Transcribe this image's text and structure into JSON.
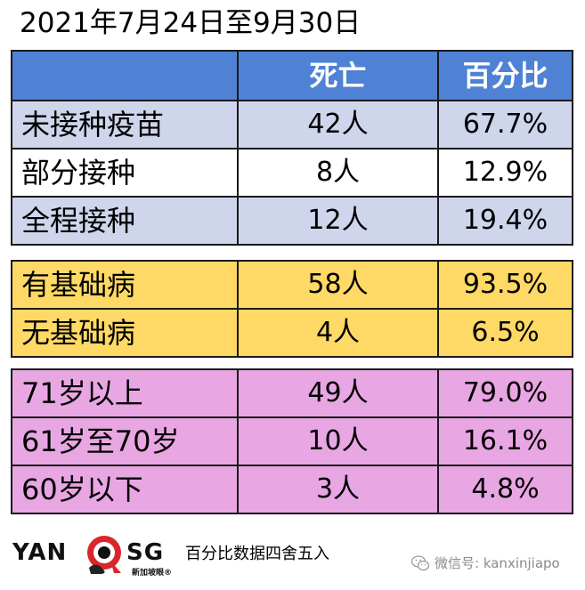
{
  "title": "2021年7月24日至9月30日",
  "header": {
    "col0": "",
    "col1": "死亡",
    "col2": "百分比"
  },
  "vaccination_rows": [
    {
      "label": "未接种疫苗",
      "deaths": "42人",
      "percent": "67.7%"
    },
    {
      "label": "部分接种",
      "deaths": "8人",
      "percent": "12.9%"
    },
    {
      "label": "全程接种",
      "deaths": "12人",
      "percent": "19.4%"
    }
  ],
  "condition_rows": [
    {
      "label": "有基础病",
      "deaths": "58人",
      "percent": "93.5%"
    },
    {
      "label": "无基础病",
      "deaths": "4人",
      "percent": "6.5%"
    }
  ],
  "age_rows": [
    {
      "label": "71岁以上",
      "deaths": "49人",
      "percent": "79.0%"
    },
    {
      "label": "61岁至70岁",
      "deaths": "10人",
      "percent": "16.1%"
    },
    {
      "label": "60岁以下",
      "deaths": "3人",
      "percent": "4.8%"
    }
  ],
  "footer": {
    "logo_left": "YAN",
    "logo_right": "SG",
    "logo_sub": "新加坡眼®",
    "note": "百分比数据四舍五入",
    "wechat": "微信号: kanxinjiapo"
  },
  "colors": {
    "header_blue": "#4f81d4",
    "vacc_dark": "#cfd5eb",
    "vacc_light": "#e6e9f5",
    "condition_yellow": "#ffd966",
    "age_pink": "#e8a6e3",
    "logo_red": "#d9262c"
  },
  "icons": [
    "wechat-icon",
    "logo-badge-icon"
  ]
}
